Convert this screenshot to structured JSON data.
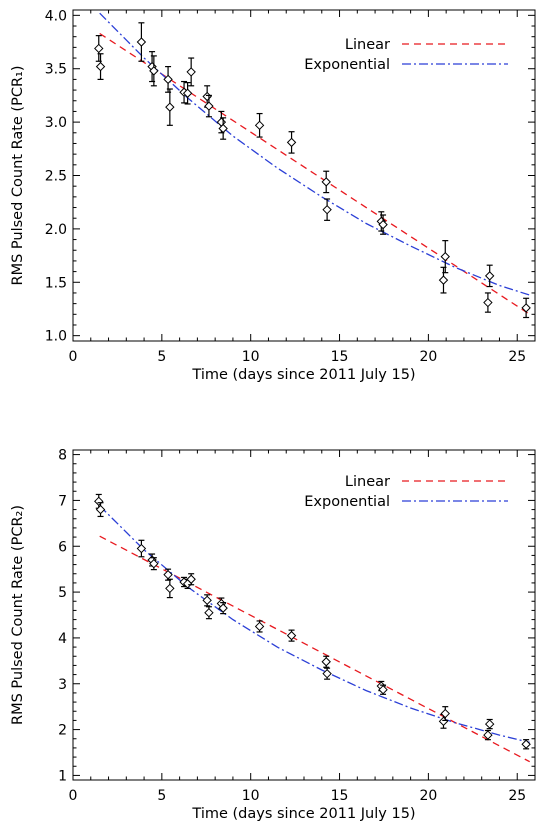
{
  "colors": {
    "linear": "#e8191f",
    "exponential": "#2b3fd6",
    "axis": "#000000"
  },
  "chart_data": [
    {
      "type": "scatter",
      "xlabel": "Time (days since 2011 July 15)",
      "ylabel": "RMS Pulsed Count Rate (PCR₁)",
      "xlim": [
        0,
        26
      ],
      "ylim": [
        0.95,
        4.05
      ],
      "xticks": [
        "0",
        "5",
        "10",
        "15",
        "20",
        "25"
      ],
      "xtick_values": [
        0,
        5,
        10,
        15,
        20,
        25
      ],
      "yticks": [
        "1.0",
        "1.5",
        "2.0",
        "2.5",
        "3.0",
        "3.5",
        "4.0"
      ],
      "ytick_values": [
        1.0,
        1.5,
        2.0,
        2.5,
        3.0,
        3.5,
        4.0
      ],
      "legend": {
        "placement": "top-right",
        "entries": [
          {
            "label": "Linear",
            "style": "dashed"
          },
          {
            "label": "Exponential",
            "style": "dash-dot"
          }
        ]
      },
      "points": [
        {
          "x": 1.45,
          "y": 3.69,
          "err": 0.12
        },
        {
          "x": 1.55,
          "y": 3.52,
          "err": 0.12
        },
        {
          "x": 3.85,
          "y": 3.75,
          "err": 0.18
        },
        {
          "x": 4.45,
          "y": 3.52,
          "err": 0.14
        },
        {
          "x": 4.55,
          "y": 3.48,
          "err": 0.14
        },
        {
          "x": 5.35,
          "y": 3.4,
          "err": 0.12
        },
        {
          "x": 5.45,
          "y": 3.14,
          "err": 0.17
        },
        {
          "x": 6.25,
          "y": 3.28,
          "err": 0.1
        },
        {
          "x": 6.45,
          "y": 3.27,
          "err": 0.1
        },
        {
          "x": 6.65,
          "y": 3.47,
          "err": 0.13
        },
        {
          "x": 7.55,
          "y": 3.24,
          "err": 0.1
        },
        {
          "x": 7.65,
          "y": 3.15,
          "err": 0.1
        },
        {
          "x": 8.35,
          "y": 3.0,
          "err": 0.1
        },
        {
          "x": 8.45,
          "y": 2.94,
          "err": 0.1
        },
        {
          "x": 10.5,
          "y": 2.97,
          "err": 0.11
        },
        {
          "x": 12.3,
          "y": 2.81,
          "err": 0.1
        },
        {
          "x": 14.25,
          "y": 2.44,
          "err": 0.1
        },
        {
          "x": 14.3,
          "y": 2.18,
          "err": 0.1
        },
        {
          "x": 17.35,
          "y": 2.07,
          "err": 0.09
        },
        {
          "x": 17.45,
          "y": 2.04,
          "err": 0.09
        },
        {
          "x": 20.85,
          "y": 1.52,
          "err": 0.12
        },
        {
          "x": 20.95,
          "y": 1.74,
          "err": 0.15
        },
        {
          "x": 23.35,
          "y": 1.31,
          "err": 0.09
        },
        {
          "x": 23.45,
          "y": 1.56,
          "err": 0.1
        },
        {
          "x": 25.5,
          "y": 1.26,
          "err": 0.09
        }
      ],
      "fits": [
        {
          "name": "Linear",
          "style": "dashed",
          "color": "#e8191f",
          "x": [
            1.5,
            25.7
          ],
          "y": [
            3.83,
            1.2
          ]
        },
        {
          "name": "Exponential",
          "style": "dash-dot",
          "color": "#2b3fd6",
          "x": [
            1.5,
            4.0,
            6.5,
            9.0,
            11.5,
            14.0,
            16.5,
            19.0,
            21.5,
            24.0,
            25.7
          ],
          "y": [
            4.02,
            3.6,
            3.22,
            2.87,
            2.57,
            2.3,
            2.05,
            1.84,
            1.64,
            1.47,
            1.38
          ]
        }
      ]
    },
    {
      "type": "scatter",
      "xlabel": "Time (days since 2011 July 15)",
      "ylabel": "RMS Pulsed Count Rate (PCR₂)",
      "xlim": [
        0,
        26
      ],
      "ylim": [
        0.9,
        8.1
      ],
      "xticks": [
        "0",
        "5",
        "10",
        "15",
        "20",
        "25"
      ],
      "xtick_values": [
        0,
        5,
        10,
        15,
        20,
        25
      ],
      "yticks": [
        "1",
        "2",
        "3",
        "4",
        "5",
        "6",
        "7",
        "8"
      ],
      "ytick_values": [
        1,
        2,
        3,
        4,
        5,
        6,
        7,
        8
      ],
      "legend": {
        "placement": "top-right",
        "entries": [
          {
            "label": "Linear",
            "style": "dashed"
          },
          {
            "label": "Exponential",
            "style": "dash-dot"
          }
        ]
      },
      "points": [
        {
          "x": 1.45,
          "y": 6.98,
          "err": 0.15
        },
        {
          "x": 1.55,
          "y": 6.8,
          "err": 0.15
        },
        {
          "x": 3.85,
          "y": 5.95,
          "err": 0.18
        },
        {
          "x": 4.45,
          "y": 5.7,
          "err": 0.13
        },
        {
          "x": 4.55,
          "y": 5.62,
          "err": 0.13
        },
        {
          "x": 5.35,
          "y": 5.38,
          "err": 0.12
        },
        {
          "x": 5.45,
          "y": 5.08,
          "err": 0.2
        },
        {
          "x": 6.25,
          "y": 5.22,
          "err": 0.1
        },
        {
          "x": 6.45,
          "y": 5.18,
          "err": 0.1
        },
        {
          "x": 6.65,
          "y": 5.28,
          "err": 0.12
        },
        {
          "x": 7.55,
          "y": 4.82,
          "err": 0.12
        },
        {
          "x": 7.65,
          "y": 4.55,
          "err": 0.13
        },
        {
          "x": 8.35,
          "y": 4.75,
          "err": 0.12
        },
        {
          "x": 8.45,
          "y": 4.65,
          "err": 0.12
        },
        {
          "x": 10.5,
          "y": 4.25,
          "err": 0.12
        },
        {
          "x": 12.3,
          "y": 4.05,
          "err": 0.12
        },
        {
          "x": 14.25,
          "y": 3.48,
          "err": 0.12
        },
        {
          "x": 14.3,
          "y": 3.22,
          "err": 0.12
        },
        {
          "x": 17.35,
          "y": 2.95,
          "err": 0.1
        },
        {
          "x": 17.45,
          "y": 2.87,
          "err": 0.1
        },
        {
          "x": 20.85,
          "y": 2.18,
          "err": 0.15
        },
        {
          "x": 20.95,
          "y": 2.35,
          "err": 0.15
        },
        {
          "x": 23.35,
          "y": 1.88,
          "err": 0.1
        },
        {
          "x": 23.45,
          "y": 2.12,
          "err": 0.1
        },
        {
          "x": 25.5,
          "y": 1.68,
          "err": 0.1
        }
      ],
      "fits": [
        {
          "name": "Linear",
          "style": "dashed",
          "color": "#e8191f",
          "x": [
            1.5,
            25.7
          ],
          "y": [
            6.22,
            1.3
          ]
        },
        {
          "name": "Exponential",
          "style": "dash-dot",
          "color": "#2b3fd6",
          "x": [
            1.5,
            4.0,
            6.5,
            9.0,
            11.5,
            14.0,
            16.5,
            19.0,
            21.5,
            24.0,
            25.7
          ],
          "y": [
            6.88,
            5.92,
            5.1,
            4.4,
            3.8,
            3.3,
            2.85,
            2.47,
            2.15,
            1.88,
            1.72
          ]
        }
      ]
    }
  ]
}
